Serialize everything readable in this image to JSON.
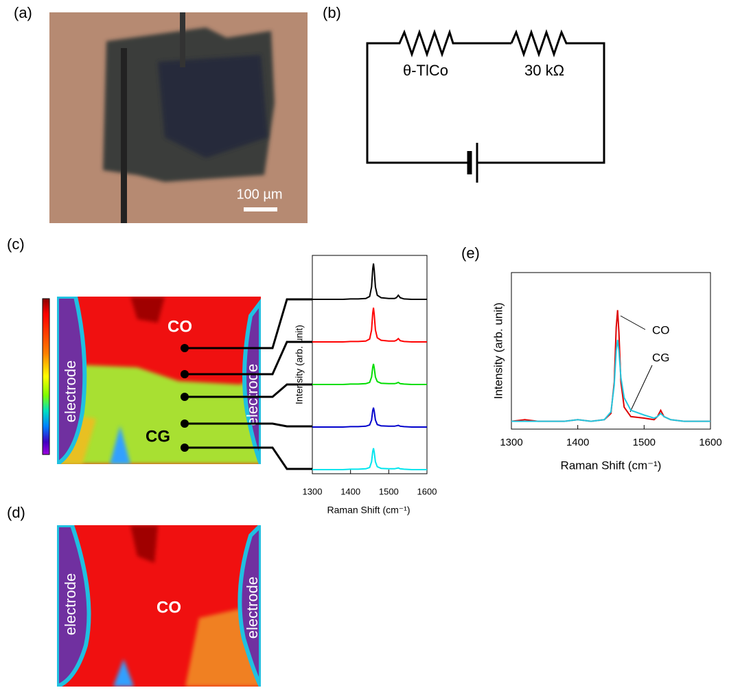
{
  "panels": {
    "a": {
      "label": "(a)",
      "scale_bar": "100 µm"
    },
    "b": {
      "label": "(b)",
      "resistors": [
        "θ-TlCo",
        "30 kΩ"
      ]
    },
    "c": {
      "label": "(c)",
      "map_labels": [
        "electrode",
        "electrode",
        "CO",
        "CG"
      ]
    },
    "d": {
      "label": "(d)",
      "map_labels": [
        "electrode",
        "electrode",
        "CO"
      ]
    },
    "e": {
      "label": "(e)"
    }
  },
  "chart_data": [
    {
      "type": "line",
      "offset_traces": true,
      "x_label": "Raman Shift (cm⁻¹)",
      "y_label": "Intensity (arb. unit)",
      "xlim": [
        1300,
        1600
      ],
      "xticks": [
        1300,
        1400,
        1500,
        1600
      ],
      "ylim": [
        0,
        1
      ],
      "x": [
        1300,
        1320,
        1340,
        1360,
        1380,
        1400,
        1420,
        1440,
        1450,
        1455,
        1458,
        1460,
        1462,
        1465,
        1470,
        1480,
        1500,
        1515,
        1520,
        1525,
        1530,
        1540,
        1560,
        1580,
        1600
      ],
      "series": [
        {
          "color": "#000000",
          "values": [
            0,
            0,
            0,
            0,
            0,
            0.01,
            0.01,
            0.02,
            0.07,
            0.3,
            0.74,
            0.87,
            0.7,
            0.3,
            0.1,
            0.04,
            0.02,
            0.02,
            0.04,
            0.1,
            0.04,
            0.01,
            0,
            0,
            0
          ]
        },
        {
          "color": "#ff0000",
          "values": [
            0,
            0,
            0,
            0,
            0,
            0.01,
            0.01,
            0.02,
            0.07,
            0.29,
            0.7,
            0.83,
            0.66,
            0.29,
            0.1,
            0.04,
            0.02,
            0.02,
            0.04,
            0.08,
            0.03,
            0.01,
            0,
            0,
            0
          ]
        },
        {
          "color": "#00dd00",
          "values": [
            0,
            0,
            0,
            0,
            0,
            0.01,
            0.01,
            0.02,
            0.05,
            0.18,
            0.42,
            0.5,
            0.4,
            0.18,
            0.07,
            0.03,
            0.02,
            0.02,
            0.03,
            0.05,
            0.02,
            0.01,
            0,
            0,
            0
          ]
        },
        {
          "color": "#0000cc",
          "values": [
            0,
            0,
            0,
            0,
            0,
            0.01,
            0.01,
            0.02,
            0.05,
            0.17,
            0.4,
            0.47,
            0.38,
            0.17,
            0.06,
            0.03,
            0.02,
            0.02,
            0.03,
            0.04,
            0.02,
            0.01,
            0,
            0,
            0
          ]
        },
        {
          "color": "#00e5ee",
          "values": [
            0,
            0,
            0,
            0,
            0,
            0.01,
            0.01,
            0.02,
            0.05,
            0.19,
            0.44,
            0.52,
            0.42,
            0.19,
            0.07,
            0.03,
            0.02,
            0.02,
            0.03,
            0.04,
            0.02,
            0.01,
            0,
            0,
            0
          ]
        }
      ]
    },
    {
      "type": "line",
      "x_label": "Raman Shift (cm⁻¹)",
      "y_label": "Intensity (arb. unit)",
      "xlim": [
        1300,
        1600
      ],
      "xticks": [
        1300,
        1400,
        1500,
        1600
      ],
      "ylim": [
        0,
        1
      ],
      "x": [
        1300,
        1320,
        1340,
        1360,
        1380,
        1400,
        1420,
        1440,
        1450,
        1455,
        1458,
        1460,
        1462,
        1465,
        1470,
        1480,
        1500,
        1515,
        1520,
        1525,
        1530,
        1540,
        1560,
        1580,
        1600
      ],
      "series": [
        {
          "name": "CO",
          "color": "#dd0000",
          "values": [
            0.05,
            0.06,
            0.05,
            0.05,
            0.05,
            0.06,
            0.05,
            0.06,
            0.1,
            0.3,
            0.65,
            0.76,
            0.62,
            0.3,
            0.14,
            0.08,
            0.07,
            0.06,
            0.08,
            0.12,
            0.08,
            0.06,
            0.05,
            0.05,
            0.05
          ]
        },
        {
          "name": "CG",
          "color": "#22c8e0",
          "values": [
            0.05,
            0.05,
            0.05,
            0.05,
            0.05,
            0.06,
            0.05,
            0.06,
            0.11,
            0.28,
            0.5,
            0.57,
            0.5,
            0.33,
            0.2,
            0.12,
            0.09,
            0.07,
            0.08,
            0.1,
            0.08,
            0.06,
            0.05,
            0.05,
            0.05
          ]
        }
      ]
    }
  ]
}
